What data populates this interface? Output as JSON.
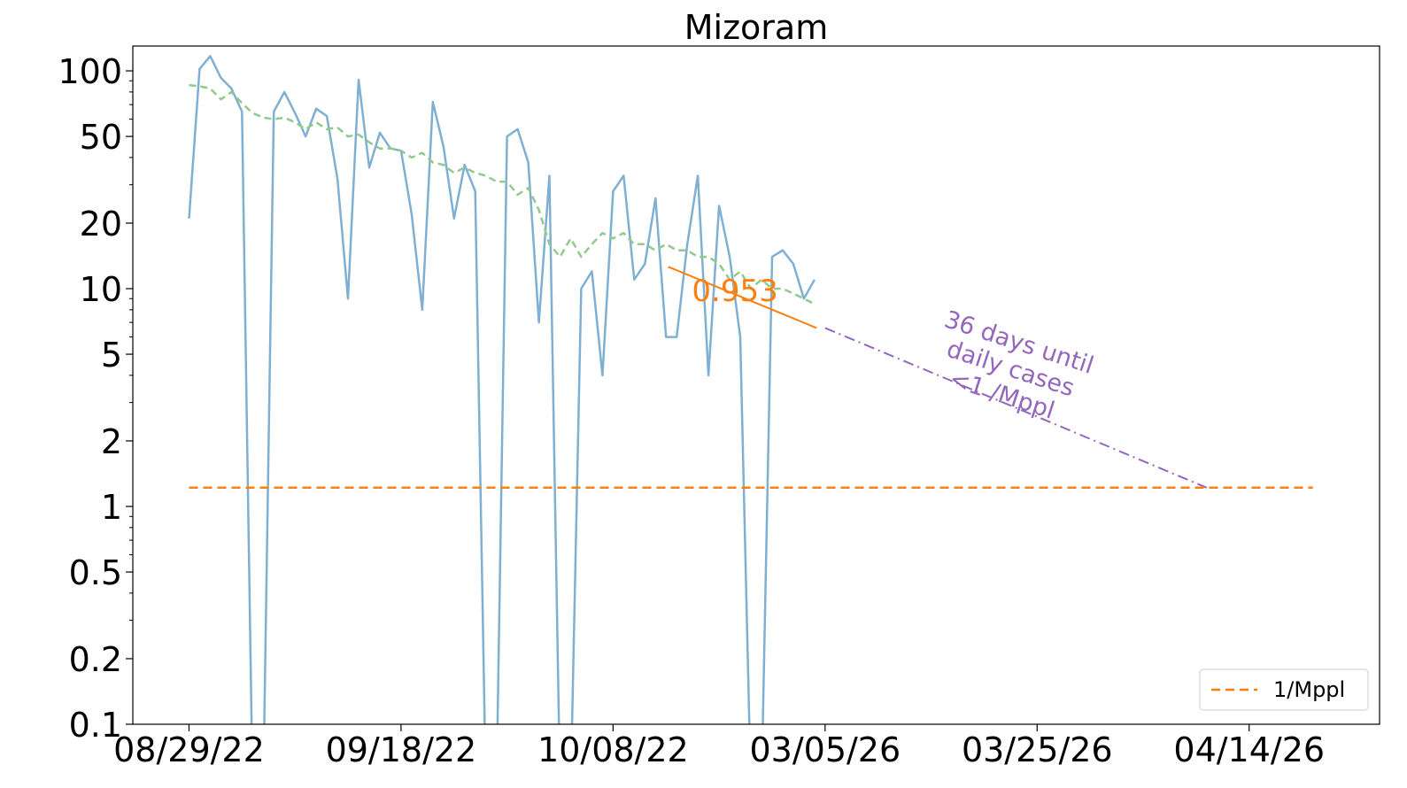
{
  "chart_data": {
    "type": "line",
    "title": "Mizoram",
    "xlabel": "",
    "ylabel": "",
    "y_scale": "log",
    "ylim": [
      0.1,
      130
    ],
    "xlim": [
      -5.3,
      112.3
    ],
    "x_tick_labels": [
      "08/29/22",
      "09/18/22",
      "10/08/22",
      "03/05/26",
      "03/25/26",
      "04/14/26"
    ],
    "x_tick_positions": [
      0,
      20,
      40,
      60,
      80,
      100
    ],
    "y_tick_values": [
      0.1,
      0.2,
      0.5,
      1,
      2,
      5,
      10,
      20,
      50,
      100
    ],
    "y_tick_labels": [
      "0.1",
      "0.2",
      "0.5",
      "1",
      "2",
      "5",
      "10",
      "20",
      "50",
      "100"
    ],
    "grid": false,
    "legend": {
      "placement": "bottom-right",
      "entries": [
        "1/Mppl"
      ]
    },
    "series": [
      {
        "role": "daily_cases",
        "color": "#7fb0d3",
        "x": [
          0,
          1,
          2,
          3,
          4,
          5,
          6,
          7,
          8,
          9,
          10,
          11,
          12,
          13,
          14,
          15,
          16,
          17,
          18,
          19,
          20,
          21,
          22,
          23,
          24,
          25,
          26,
          27,
          28,
          29,
          30,
          31,
          32,
          33,
          34,
          35,
          36,
          37,
          38,
          39,
          40,
          41,
          42,
          43,
          44,
          45,
          46,
          47,
          48,
          49,
          50,
          51,
          52,
          53,
          54,
          55,
          56,
          57,
          58,
          59
        ],
        "values": [
          21,
          102,
          117,
          93,
          83,
          65,
          0.05,
          0.05,
          65,
          80,
          64,
          50,
          67,
          62,
          32,
          9,
          91,
          36,
          52,
          44,
          43,
          22,
          8,
          72,
          45,
          21,
          37,
          28,
          0.05,
          0.05,
          50,
          54,
          38,
          7,
          33,
          0.05,
          0.05,
          10,
          12,
          4,
          28,
          33,
          11,
          13,
          26,
          6,
          6,
          16,
          33,
          4,
          24,
          14,
          6,
          0.05,
          0.05,
          14,
          15,
          13,
          9,
          11
        ]
      },
      {
        "role": "rolling_average",
        "color": "#8fcb8c",
        "x": [
          0,
          1,
          2,
          3,
          4,
          5,
          6,
          7,
          8,
          9,
          10,
          11,
          12,
          13,
          14,
          15,
          16,
          17,
          18,
          19,
          20,
          21,
          22,
          23,
          24,
          25,
          26,
          27,
          28,
          29,
          30,
          31,
          32,
          33,
          34,
          35,
          36,
          37,
          38,
          39,
          40,
          41,
          42,
          43,
          44,
          45,
          46,
          47,
          48,
          49,
          50,
          51,
          52,
          53,
          54,
          55,
          56,
          57,
          58,
          59
        ],
        "values": [
          86,
          85,
          83,
          74,
          80,
          71,
          64,
          61,
          60,
          61,
          58,
          54,
          58,
          54,
          55,
          50,
          51,
          47,
          44,
          44,
          43,
          40,
          42,
          38,
          37,
          34,
          36,
          34,
          33,
          31,
          31,
          27,
          29,
          23,
          16,
          14,
          17,
          14,
          16,
          18,
          17,
          18,
          16,
          16,
          15,
          16,
          15,
          15,
          14,
          14,
          13,
          11,
          12,
          10,
          11,
          10,
          10,
          9.5,
          9,
          8.5
        ]
      },
      {
        "role": "trend_fit",
        "color": "#ff7f0e",
        "x": [
          45.2,
          59.2
        ],
        "values": [
          12.6,
          6.6
        ]
      },
      {
        "role": "projection",
        "color": "#9467bd",
        "x": [
          60,
          96
        ],
        "values": [
          6.6,
          1.22
        ]
      },
      {
        "name": "1/Mppl",
        "role": "threshold",
        "color": "#ff7f0e",
        "x": [
          0,
          106
        ],
        "values": [
          1.22,
          1.22
        ]
      }
    ],
    "annotations": [
      {
        "text": "0.953",
        "x": 51.5,
        "y": 9.8,
        "color": "#ff7f0e"
      },
      {
        "lines": [
          "36 days until",
          "daily cases",
          "<1 /Mppl"
        ],
        "x": 77.5,
        "y": 4.3,
        "color": "#9467bd",
        "rotation_deg": 18
      }
    ]
  }
}
